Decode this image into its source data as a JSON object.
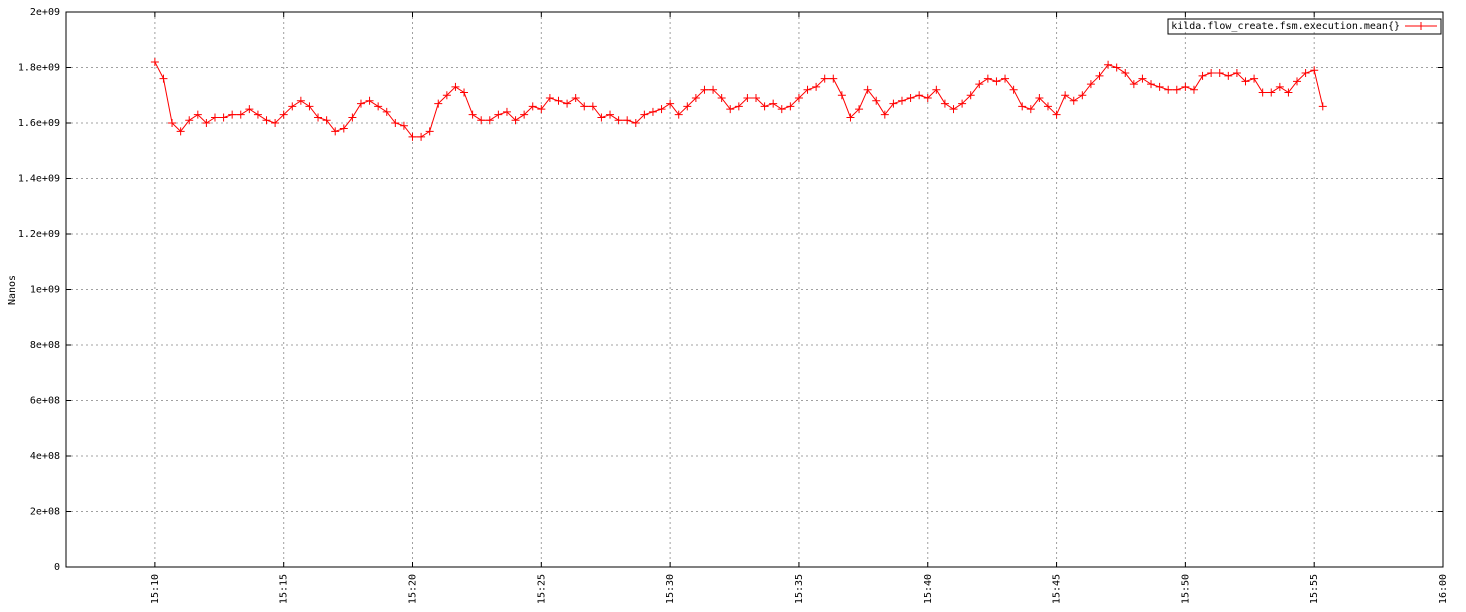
{
  "chart_data": {
    "type": "line",
    "ylabel": "Nanos",
    "x": [
      "15:10:00",
      "15:10:20",
      "15:10:40",
      "15:11:00",
      "15:11:20",
      "15:11:40",
      "15:12:00",
      "15:12:20",
      "15:12:40",
      "15:13:00",
      "15:13:20",
      "15:13:40",
      "15:14:00",
      "15:14:20",
      "15:14:40",
      "15:15:00",
      "15:15:20",
      "15:15:40",
      "15:16:00",
      "15:16:20",
      "15:16:40",
      "15:17:00",
      "15:17:20",
      "15:17:40",
      "15:18:00",
      "15:18:20",
      "15:18:40",
      "15:19:00",
      "15:19:20",
      "15:19:40",
      "15:20:00",
      "15:20:20",
      "15:20:40",
      "15:21:00",
      "15:21:20",
      "15:21:40",
      "15:22:00",
      "15:22:20",
      "15:22:40",
      "15:23:00",
      "15:23:20",
      "15:23:40",
      "15:24:00",
      "15:24:20",
      "15:24:40",
      "15:25:00",
      "15:25:20",
      "15:25:40",
      "15:26:00",
      "15:26:20",
      "15:26:40",
      "15:27:00",
      "15:27:20",
      "15:27:40",
      "15:28:00",
      "15:28:20",
      "15:28:40",
      "15:29:00",
      "15:29:20",
      "15:29:40",
      "15:30:00",
      "15:30:20",
      "15:30:40",
      "15:31:00",
      "15:31:20",
      "15:31:40",
      "15:32:00",
      "15:32:20",
      "15:32:40",
      "15:33:00",
      "15:33:20",
      "15:33:40",
      "15:34:00",
      "15:34:20",
      "15:34:40",
      "15:35:00",
      "15:35:20",
      "15:35:40",
      "15:36:00",
      "15:36:20",
      "15:36:40",
      "15:37:00",
      "15:37:20",
      "15:37:40",
      "15:38:00",
      "15:38:20",
      "15:38:40",
      "15:39:00",
      "15:39:20",
      "15:39:40",
      "15:40:00",
      "15:40:20",
      "15:40:40",
      "15:41:00",
      "15:41:20",
      "15:41:40",
      "15:42:00",
      "15:42:20",
      "15:42:40",
      "15:43:00",
      "15:43:20",
      "15:43:40",
      "15:44:00",
      "15:44:20",
      "15:44:40",
      "15:45:00",
      "15:45:20",
      "15:45:40",
      "15:46:00",
      "15:46:20",
      "15:46:40",
      "15:47:00",
      "15:47:20",
      "15:47:40",
      "15:48:00",
      "15:48:20",
      "15:48:40",
      "15:49:00",
      "15:49:20",
      "15:49:40",
      "15:50:00",
      "15:50:20",
      "15:50:40",
      "15:51:00",
      "15:51:20",
      "15:51:40",
      "15:52:00",
      "15:52:20",
      "15:52:40",
      "15:53:00",
      "15:53:20",
      "15:53:40",
      "15:54:00",
      "15:54:20",
      "15:54:40",
      "15:55:00",
      "15:55:20"
    ],
    "series": [
      {
        "name": "kilda.flow_create.fsm.execution.mean{}",
        "color": "#ff0000",
        "values": [
          1820000000.0,
          1760000000.0,
          1600000000.0,
          1570000000.0,
          1610000000.0,
          1630000000.0,
          1600000000.0,
          1620000000.0,
          1620000000.0,
          1630000000.0,
          1630000000.0,
          1650000000.0,
          1630000000.0,
          1610000000.0,
          1600000000.0,
          1630000000.0,
          1660000000.0,
          1680000000.0,
          1660000000.0,
          1620000000.0,
          1610000000.0,
          1570000000.0,
          1580000000.0,
          1620000000.0,
          1670000000.0,
          1680000000.0,
          1660000000.0,
          1640000000.0,
          1600000000.0,
          1590000000.0,
          1550000000.0,
          1550000000.0,
          1570000000.0,
          1670000000.0,
          1700000000.0,
          1730000000.0,
          1710000000.0,
          1630000000.0,
          1610000000.0,
          1610000000.0,
          1630000000.0,
          1640000000.0,
          1610000000.0,
          1630000000.0,
          1660000000.0,
          1650000000.0,
          1690000000.0,
          1680000000.0,
          1670000000.0,
          1690000000.0,
          1660000000.0,
          1660000000.0,
          1620000000.0,
          1630000000.0,
          1610000000.0,
          1610000000.0,
          1600000000.0,
          1630000000.0,
          1640000000.0,
          1650000000.0,
          1670000000.0,
          1630000000.0,
          1660000000.0,
          1690000000.0,
          1720000000.0,
          1720000000.0,
          1690000000.0,
          1650000000.0,
          1660000000.0,
          1690000000.0,
          1690000000.0,
          1660000000.0,
          1670000000.0,
          1650000000.0,
          1660000000.0,
          1690000000.0,
          1720000000.0,
          1730000000.0,
          1760000000.0,
          1760000000.0,
          1700000000.0,
          1620000000.0,
          1650000000.0,
          1720000000.0,
          1680000000.0,
          1630000000.0,
          1670000000.0,
          1680000000.0,
          1690000000.0,
          1700000000.0,
          1690000000.0,
          1720000000.0,
          1670000000.0,
          1650000000.0,
          1670000000.0,
          1700000000.0,
          1740000000.0,
          1760000000.0,
          1750000000.0,
          1760000000.0,
          1720000000.0,
          1660000000.0,
          1650000000.0,
          1690000000.0,
          1660000000.0,
          1630000000.0,
          1700000000.0,
          1680000000.0,
          1700000000.0,
          1740000000.0,
          1770000000.0,
          1810000000.0,
          1800000000.0,
          1780000000.0,
          1740000000.0,
          1760000000.0,
          1740000000.0,
          1730000000.0,
          1720000000.0,
          1720000000.0,
          1730000000.0,
          1720000000.0,
          1770000000.0,
          1780000000.0,
          1780000000.0,
          1770000000.0,
          1780000000.0,
          1750000000.0,
          1760000000.0,
          1710000000.0,
          1710000000.0,
          1730000000.0,
          1710000000.0,
          1750000000.0,
          1780000000.0,
          1790000000.0,
          1660000000.0
        ]
      }
    ],
    "xlim": [
      "15:06:33",
      "16:00"
    ],
    "xticks": [
      "15:10",
      "15:15",
      "15:20",
      "15:25",
      "15:30",
      "15:35",
      "15:40",
      "15:45",
      "15:50",
      "15:55",
      "16:00"
    ],
    "ylim": [
      0,
      2000000000
    ],
    "yticks": [
      0,
      {
        "value": 200000000,
        "label": "2e+08"
      },
      {
        "value": 400000000,
        "label": "4e+08"
      },
      {
        "value": 600000000,
        "label": "6e+08"
      },
      {
        "value": 800000000,
        "label": "8e+08"
      },
      {
        "value": 1000000000,
        "label": "1e+09"
      },
      {
        "value": 1200000000,
        "label": "1.2e+09"
      },
      {
        "value": 1400000000,
        "label": "1.4e+09"
      },
      {
        "value": 1600000000,
        "label": "1.6e+09"
      },
      {
        "value": 1800000000,
        "label": "1.8e+09"
      },
      {
        "value": 2000000000,
        "label": "2e+09"
      }
    ],
    "grid": true,
    "legend": "top-right"
  }
}
